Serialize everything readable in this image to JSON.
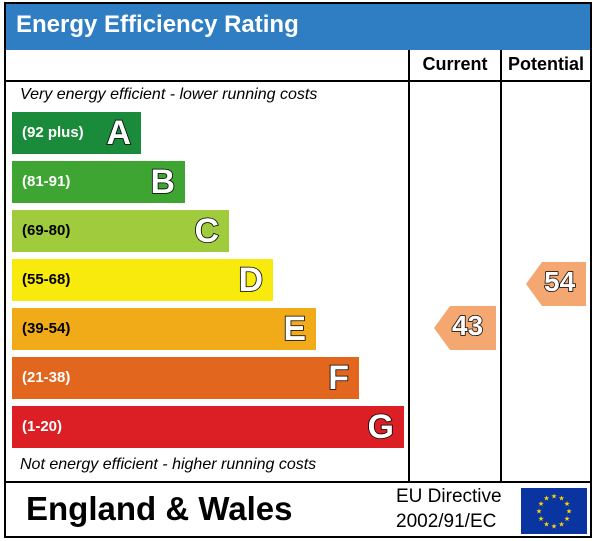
{
  "title": "Energy Efficiency Rating",
  "columns": {
    "current": "Current",
    "potential": "Potential"
  },
  "notes": {
    "top": "Very energy efficient - lower running costs",
    "bottom": "Not energy efficient - higher running costs"
  },
  "chart_data": {
    "type": "bar",
    "title": "Energy Efficiency Rating",
    "categories": [
      "A",
      "B",
      "C",
      "D",
      "E",
      "F",
      "G"
    ],
    "bands": [
      {
        "letter": "A",
        "range": "(92 plus)",
        "color": "#1a8a3b"
      },
      {
        "letter": "B",
        "range": "(81-91)",
        "color": "#3ea532"
      },
      {
        "letter": "C",
        "range": "(69-80)",
        "color": "#9fcb3c"
      },
      {
        "letter": "D",
        "range": "(55-68)",
        "color": "#f7ea0c"
      },
      {
        "letter": "E",
        "range": "(39-54)",
        "color": "#f1ab19"
      },
      {
        "letter": "F",
        "range": "(21-38)",
        "color": "#e3661f"
      },
      {
        "letter": "G",
        "range": "(1-20)",
        "color": "#dc1e25"
      }
    ],
    "series": [
      {
        "name": "Current",
        "value": 43,
        "band": "E"
      },
      {
        "name": "Potential",
        "value": 54,
        "band": "E"
      }
    ],
    "ylim": [
      1,
      100
    ]
  },
  "footer": {
    "region": "England & Wales",
    "directive_line1": "EU Directive",
    "directive_line2": "2002/91/EC"
  },
  "colors": {
    "title_bar": "#2f7dc3",
    "rating_arrow": "#f4a771",
    "eu_flag": "#0a35a0",
    "eu_star": "#ffd500"
  },
  "icons": {
    "flag": "eu-flag-icon"
  }
}
